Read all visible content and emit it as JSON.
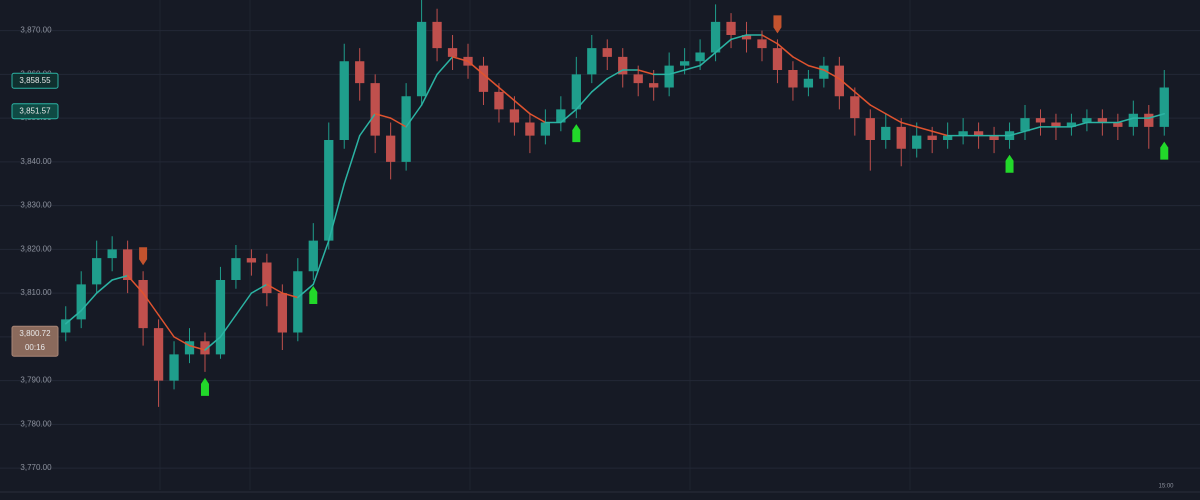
{
  "chart_data": {
    "type": "candlestick",
    "ylim": [
      3765,
      3877
    ],
    "yticks": [
      {
        "value": 3870,
        "label": "3,870.00"
      },
      {
        "value": 3860,
        "label": "3,860.00"
      },
      {
        "value": 3850,
        "label": "3,850.00"
      },
      {
        "value": 3840,
        "label": "3,840.00"
      },
      {
        "value": 3830,
        "label": "3,830.00"
      },
      {
        "value": 3820,
        "label": "3,820.00"
      },
      {
        "value": 3810,
        "label": "3,810.00"
      },
      {
        "value": 3800,
        "label": "3,800.00"
      },
      {
        "value": 3790,
        "label": "3,790.00"
      },
      {
        "value": 3780,
        "label": "3,780.00"
      },
      {
        "value": 3770,
        "label": "3,770.00"
      }
    ],
    "grid": true,
    "up_color": "#1f9e8c",
    "down_color": "#c0504d",
    "open": [
      3801,
      3804,
      3812,
      3818,
      3820,
      3813,
      3802,
      3790,
      3796,
      3799,
      3796,
      3813,
      3818,
      3817,
      3810,
      3801,
      3815,
      3822,
      3845,
      3863,
      3858,
      3846,
      3840,
      3855,
      3872,
      3866,
      3864,
      3862,
      3856,
      3852,
      3849,
      3846,
      3849,
      3852,
      3860,
      3866,
      3864,
      3860,
      3858,
      3857,
      3862,
      3863,
      3865,
      3872,
      3869,
      3868,
      3866,
      3861,
      3857,
      3859,
      3862,
      3855,
      3850,
      3845,
      3848,
      3843,
      3846,
      3845,
      3846,
      3847,
      3846,
      3845,
      3847,
      3850,
      3849,
      3848,
      3849,
      3850,
      3849,
      3848,
      3851,
      3848
    ],
    "high": [
      3807,
      3815,
      3822,
      3823,
      3822,
      3815,
      3804,
      3799,
      3802,
      3801,
      3816,
      3821,
      3820,
      3819,
      3812,
      3818,
      3826,
      3849,
      3867,
      3866,
      3860,
      3849,
      3858,
      3877,
      3875,
      3869,
      3867,
      3864,
      3858,
      3855,
      3851,
      3852,
      3855,
      3864,
      3869,
      3868,
      3866,
      3862,
      3861,
      3865,
      3866,
      3868,
      3876,
      3874,
      3872,
      3870,
      3868,
      3863,
      3861,
      3864,
      3864,
      3857,
      3852,
      3851,
      3850,
      3849,
      3848,
      3849,
      3850,
      3849,
      3848,
      3849,
      3853,
      3852,
      3851,
      3851,
      3852,
      3852,
      3851,
      3854,
      3853,
      3861
    ],
    "low": [
      3799,
      3802,
      3810,
      3815,
      3810,
      3798,
      3784,
      3788,
      3794,
      3792,
      3795,
      3811,
      3814,
      3807,
      3797,
      3799,
      3813,
      3820,
      3843,
      3854,
      3842,
      3836,
      3838,
      3853,
      3863,
      3861,
      3859,
      3853,
      3849,
      3846,
      3842,
      3844,
      3847,
      3850,
      3858,
      3861,
      3857,
      3855,
      3854,
      3855,
      3860,
      3861,
      3863,
      3866,
      3865,
      3863,
      3858,
      3854,
      3855,
      3857,
      3852,
      3846,
      3838,
      3843,
      3839,
      3841,
      3842,
      3843,
      3844,
      3843,
      3842,
      3843,
      3845,
      3846,
      3845,
      3846,
      3847,
      3846,
      3845,
      3846,
      3843,
      3846
    ],
    "close": [
      3804,
      3812,
      3818,
      3820,
      3813,
      3802,
      3790,
      3796,
      3799,
      3796,
      3813,
      3818,
      3817,
      3810,
      3801,
      3815,
      3822,
      3845,
      3863,
      3858,
      3846,
      3840,
      3855,
      3872,
      3866,
      3864,
      3862,
      3856,
      3852,
      3849,
      3846,
      3849,
      3852,
      3860,
      3866,
      3864,
      3860,
      3858,
      3857,
      3862,
      3863,
      3865,
      3872,
      3869,
      3868,
      3866,
      3861,
      3857,
      3859,
      3862,
      3855,
      3850,
      3845,
      3848,
      3843,
      3846,
      3845,
      3846,
      3847,
      3846,
      3845,
      3847,
      3850,
      3849,
      3848,
      3849,
      3850,
      3849,
      3848,
      3851,
      3848,
      3857
    ],
    "ma": {
      "up_color": "#2bb3a3",
      "down_color": "#e0532f",
      "values": [
        3803,
        3806,
        3810,
        3813,
        3814,
        3810,
        3805,
        3800,
        3798,
        3797,
        3800,
        3805,
        3810,
        3812,
        3810,
        3809,
        3812,
        3822,
        3835,
        3846,
        3851,
        3850,
        3848,
        3853,
        3860,
        3864,
        3863,
        3860,
        3857,
        3854,
        3851,
        3849,
        3849,
        3852,
        3856,
        3859,
        3861,
        3861,
        3860,
        3860,
        3861,
        3862,
        3865,
        3868,
        3869,
        3869,
        3867,
        3864,
        3862,
        3861,
        3859,
        3856,
        3853,
        3851,
        3849,
        3848,
        3847,
        3846,
        3846,
        3846,
        3846,
        3846,
        3847,
        3848,
        3848,
        3848,
        3849,
        3849,
        3849,
        3850,
        3850,
        3851
      ]
    },
    "signals": [
      {
        "index": 5,
        "side": "sell"
      },
      {
        "index": 46,
        "side": "sell"
      },
      {
        "index": 9,
        "side": "buy"
      },
      {
        "index": 16,
        "side": "buy"
      },
      {
        "index": 33,
        "side": "buy"
      },
      {
        "index": 61,
        "side": "buy"
      },
      {
        "index": 71,
        "side": "buy"
      }
    ],
    "price_tags": [
      {
        "value": 3858.55,
        "label": "3,858.55",
        "style": "outline"
      },
      {
        "value": 3851.57,
        "label": "3,851.57",
        "style": "filled"
      },
      {
        "value": 3800.72,
        "label": "3,800.72",
        "sublabel": "00:16",
        "style": "current"
      }
    ],
    "time_label": "15:00"
  }
}
